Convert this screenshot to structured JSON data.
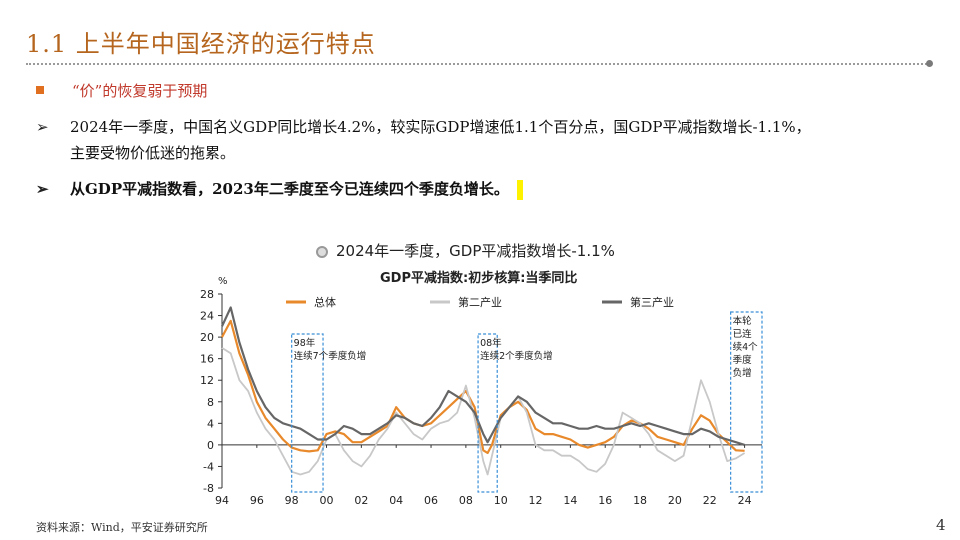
{
  "slide": {
    "title": "1.1 上半年中国经济的运行特点",
    "section": "“价”的恢复弱于预期",
    "bullet1_line1": "2024年一季度，中国名义GDP同比增长4.2%，较实际GDP增速低1.1个百分点，国GDP平减指数增长-1.1%，",
    "bullet1_line2": "主要受物价低迷的拖累。",
    "bullet2": "从GDP平减指数看，2023年二季度至今已连续四个季度负增长。",
    "arrow": "➢",
    "footer": "资料来源：Wind，平安证券研究所",
    "page_number": "4"
  },
  "chart_data": {
    "type": "line",
    "title": "2024年一季度，GDP平减指数增长-1.1%",
    "subtitle": "GDP平减指数:初步核算:当季同比",
    "ylabel": "%",
    "ylim": [
      -8,
      28
    ],
    "yticks": [
      28,
      24,
      20,
      16,
      12,
      8,
      4,
      0,
      -4,
      -8
    ],
    "xlim": [
      1994,
      2025
    ],
    "xticks": [
      "94",
      "96",
      "98",
      "00",
      "02",
      "04",
      "06",
      "08",
      "10",
      "12",
      "14",
      "16",
      "18",
      "20",
      "22",
      "24"
    ],
    "legend_position": "top",
    "series": [
      {
        "name": "总体",
        "color": "#e8892b",
        "x": [
          1994,
          1994.5,
          1995,
          1995.5,
          1996,
          1996.5,
          1997,
          1997.5,
          1998,
          1998.5,
          1999,
          1999.5,
          2000,
          2000.5,
          2001,
          2001.5,
          2002,
          2002.5,
          2003,
          2003.5,
          2004,
          2004.5,
          2005,
          2005.5,
          2006,
          2006.5,
          2007,
          2007.5,
          2008,
          2008.5,
          2009,
          2009.25,
          2009.5,
          2010,
          2010.5,
          2011,
          2011.5,
          2012,
          2012.5,
          2013,
          2013.5,
          2014,
          2014.5,
          2015,
          2015.5,
          2016,
          2016.5,
          2017,
          2017.5,
          2018,
          2018.5,
          2019,
          2019.5,
          2020,
          2020.5,
          2021,
          2021.5,
          2022,
          2022.5,
          2023,
          2023.5,
          2024
        ],
        "values": [
          20,
          23,
          17,
          13,
          8,
          5,
          3,
          1,
          -0.5,
          -1,
          -1.2,
          -1,
          2,
          2.5,
          2,
          0.5,
          0.5,
          1.5,
          2.5,
          3.5,
          7,
          5,
          4,
          3.5,
          4,
          5.5,
          7,
          8.5,
          10,
          7,
          -1,
          -1.5,
          0,
          5.5,
          7,
          8,
          6.5,
          3,
          2,
          2,
          1.5,
          1,
          0,
          -0.5,
          0,
          0.5,
          1.5,
          3.5,
          4.5,
          4,
          3,
          1.5,
          1,
          0.5,
          0,
          3,
          5.5,
          4.5,
          2,
          0.5,
          -1,
          -1.1
        ]
      },
      {
        "name": "第二产业",
        "color": "#c8c8c8",
        "x": [
          1994,
          1994.5,
          1995,
          1995.5,
          1996,
          1996.5,
          1997,
          1997.5,
          1998,
          1998.5,
          1999,
          1999.5,
          2000,
          2000.5,
          2001,
          2001.5,
          2002,
          2002.5,
          2003,
          2003.5,
          2004,
          2004.5,
          2005,
          2005.5,
          2006,
          2006.5,
          2007,
          2007.5,
          2008,
          2008.5,
          2009,
          2009.25,
          2009.5,
          2010,
          2010.5,
          2011,
          2011.5,
          2012,
          2012.5,
          2013,
          2013.5,
          2014,
          2014.5,
          2015,
          2015.5,
          2016,
          2016.5,
          2017,
          2017.5,
          2018,
          2018.5,
          2019,
          2019.5,
          2020,
          2020.5,
          2021,
          2021.5,
          2022,
          2022.5,
          2023,
          2023.5,
          2024
        ],
        "values": [
          18,
          17,
          12,
          10,
          6,
          3,
          1,
          -2,
          -5,
          -5.5,
          -5,
          -3,
          1,
          2,
          -1,
          -3,
          -4,
          -2,
          1,
          3,
          6,
          4,
          2,
          1,
          3,
          4,
          4.5,
          6,
          11,
          5,
          -3,
          -5.5,
          -2,
          5,
          7,
          9,
          6,
          0,
          -1,
          -1,
          -2,
          -2,
          -3,
          -4.5,
          -5,
          -3.5,
          0,
          6,
          5,
          4,
          2,
          -1,
          -2,
          -3,
          -2,
          5,
          12,
          8,
          2,
          -3,
          -2.5,
          -1.5
        ]
      },
      {
        "name": "第三产业",
        "color": "#666666",
        "x": [
          1994,
          1994.5,
          1995,
          1995.5,
          1996,
          1996.5,
          1997,
          1997.5,
          1998,
          1998.5,
          1999,
          1999.5,
          2000,
          2000.5,
          2001,
          2001.5,
          2002,
          2002.5,
          2003,
          2003.5,
          2004,
          2004.5,
          2005,
          2005.5,
          2006,
          2006.5,
          2007,
          2007.5,
          2008,
          2008.5,
          2009,
          2009.25,
          2009.5,
          2010,
          2010.5,
          2011,
          2011.5,
          2012,
          2012.5,
          2013,
          2013.5,
          2014,
          2014.5,
          2015,
          2015.5,
          2016,
          2016.5,
          2017,
          2017.5,
          2018,
          2018.5,
          2019,
          2019.5,
          2020,
          2020.5,
          2021,
          2021.5,
          2022,
          2022.5,
          2023,
          2023.5,
          2024
        ],
        "values": [
          22,
          25.5,
          19,
          14,
          10,
          7,
          5,
          4,
          3.5,
          3,
          2,
          1,
          1,
          2,
          3.5,
          3,
          2,
          2,
          3,
          4,
          5.5,
          5,
          4,
          3.5,
          5,
          7,
          10,
          9,
          8,
          6,
          2,
          0.5,
          2,
          5,
          7,
          9,
          8,
          6,
          5,
          4,
          4,
          3.5,
          3,
          3,
          3.5,
          3,
          3,
          3.5,
          4,
          3.5,
          4,
          3.5,
          3,
          2.5,
          2,
          2,
          3,
          2.5,
          1.5,
          1,
          0.5,
          0
        ]
      }
    ],
    "annotations": [
      {
        "label": "98年\n连续7个季度负增",
        "x_range": [
          1998,
          1999.8
        ]
      },
      {
        "label": "08年\n连续2个季度负增",
        "x_range": [
          2008.7,
          2009.8
        ]
      },
      {
        "label": "本轮\n已连\n续4个\n季度\n负增",
        "x_range": [
          2023.2,
          2025
        ]
      }
    ]
  }
}
